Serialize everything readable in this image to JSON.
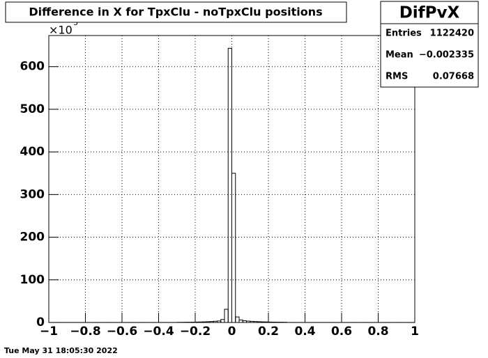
{
  "chart_data": {
    "type": "histogram",
    "title": "Difference in X for TpxClu - noTpxClu positions",
    "y_multiplier": "×10",
    "y_multiplier_exponent": "3",
    "stats": {
      "name": "DifPvX",
      "rows": [
        [
          "Entries",
          "1122420"
        ],
        [
          "Mean",
          "−0.002335"
        ],
        [
          "RMS",
          "0.07668"
        ]
      ]
    },
    "footer": "Tue May 31 18:05:30 2022",
    "bins": [
      -1,
      -0.98,
      -0.96,
      -0.94,
      -0.92,
      -0.9,
      -0.88,
      -0.86,
      -0.84,
      -0.82,
      -0.8,
      -0.78,
      -0.76,
      -0.74,
      -0.72,
      -0.7,
      -0.68,
      -0.66,
      -0.64,
      -0.62,
      -0.6,
      -0.58,
      -0.56,
      -0.54,
      -0.52,
      -0.5,
      -0.48,
      -0.46,
      -0.44,
      -0.42,
      -0.4,
      -0.38,
      -0.36,
      -0.34,
      -0.32,
      -0.3,
      -0.28,
      -0.26,
      -0.24,
      -0.22,
      -0.2,
      -0.18,
      -0.16,
      -0.14,
      -0.12,
      -0.1,
      -0.08,
      -0.06,
      -0.04,
      -0.02,
      0,
      0.02,
      0.04,
      0.06,
      0.08,
      0.1,
      0.12,
      0.14,
      0.16,
      0.18,
      0.2,
      0.22,
      0.24,
      0.26,
      0.28,
      0.3,
      0.32,
      0.34,
      0.36,
      0.38,
      0.4,
      0.42,
      0.44,
      0.46,
      0.48,
      0.5,
      0.52,
      0.54,
      0.56,
      0.58,
      0.6,
      0.62,
      0.64,
      0.66,
      0.68,
      0.7,
      0.72,
      0.74,
      0.76,
      0.78,
      0.8,
      0.82,
      0.84,
      0.86,
      0.88,
      0.9,
      0.92,
      0.94,
      0.96,
      0.98,
      1
    ],
    "values": [
      0.1,
      0.1,
      0.1,
      0.1,
      0.1,
      0.1,
      0.1,
      0.1,
      0.1,
      0.1,
      0.1,
      0.1,
      0.1,
      0.1,
      0.1,
      0.1,
      0.1,
      0.1,
      0.1,
      0.1,
      0.1,
      0.1,
      0.1,
      0.1,
      0.1,
      0.1,
      0.1,
      0.1,
      0.1,
      0.1,
      0.1,
      0.1,
      0.1,
      0.1,
      0.1,
      0.3,
      0.4,
      0.5,
      0.6,
      0.8,
      1,
      1.2,
      1.5,
      1.8,
      2.2,
      2.8,
      3.5,
      7,
      31,
      643,
      350,
      13,
      6,
      4,
      3.2,
      2.6,
      2.2,
      1.8,
      1.5,
      1.3,
      1,
      0.8,
      0.7,
      0.6,
      0.5,
      0.1,
      0.1,
      0.1,
      0.1,
      0.1,
      0.1,
      0.1,
      0.1,
      0.1,
      0.1,
      0.1,
      0.1,
      0.1,
      0.1,
      0.1,
      0.1,
      0.1,
      0.1,
      0.1,
      0.1,
      0.1,
      0.1,
      0.1,
      0.1,
      0.1,
      0.1,
      0.1,
      0.1,
      0.1,
      0.1,
      0.1,
      0.1,
      0.1,
      0.1,
      0.1
    ],
    "color": "#000000",
    "xlim": [
      -1,
      1
    ],
    "ylim": [
      0,
      673
    ],
    "xticks": [
      {
        "value": -1,
        "label": "−1"
      },
      {
        "value": -0.8,
        "label": "−0.8"
      },
      {
        "value": -0.6,
        "label": "−0.6"
      },
      {
        "value": -0.4,
        "label": "−0.4"
      },
      {
        "value": -0.2,
        "label": "−0.2"
      },
      0,
      0.2,
      0.4,
      0.6,
      0.8,
      1
    ],
    "yticks": [
      0,
      100,
      200,
      300,
      400,
      500,
      600
    ],
    "grid": true
  }
}
